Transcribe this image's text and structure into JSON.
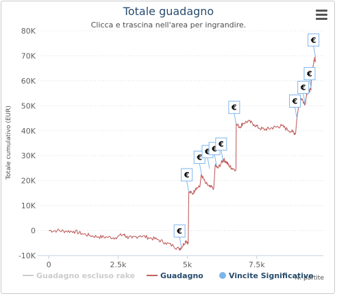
{
  "chart_data": {
    "type": "line",
    "title": "Totale guadagno",
    "subtitle": "Clicca e trascina nell'area per ingrandire.",
    "xlabel": "N. partite",
    "ylabel": "Totale cumulativo (EUR)",
    "xlim": [
      -400,
      9900
    ],
    "ylim": [
      -10000,
      80000
    ],
    "x_ticks": [
      0,
      2500,
      5000,
      7500
    ],
    "x_tick_labels": [
      "0",
      "2.5k",
      "5k",
      "7.5k"
    ],
    "y_ticks": [
      -10000,
      0,
      10000,
      20000,
      30000,
      40000,
      50000,
      60000,
      70000,
      80000
    ],
    "y_tick_labels": [
      "-10K",
      "0",
      "10K",
      "20K",
      "30K",
      "40K",
      "50K",
      "60K",
      "70K",
      "80K"
    ],
    "grid": "horizontal dotted",
    "legend_position": "bottom",
    "series": [
      {
        "name": "Guadagno escluso rake",
        "color": "#cccccc",
        "visible": false,
        "points": []
      },
      {
        "name": "Guadagno",
        "color": "#c0605f",
        "visible": true,
        "points": [
          [
            0,
            0
          ],
          [
            300,
            0
          ],
          [
            600,
            -200
          ],
          [
            900,
            -300
          ],
          [
            1200,
            -1200
          ],
          [
            1500,
            -2000
          ],
          [
            1800,
            -2500
          ],
          [
            2100,
            -2600
          ],
          [
            2400,
            -2800
          ],
          [
            2700,
            -1500
          ],
          [
            2800,
            -2500
          ],
          [
            3000,
            -3000
          ],
          [
            3300,
            -2000
          ],
          [
            3600,
            -2800
          ],
          [
            3900,
            -3500
          ],
          [
            4200,
            -4800
          ],
          [
            4500,
            -6200
          ],
          [
            4700,
            -7400
          ],
          [
            4800,
            -6500
          ],
          [
            4950,
            -4000
          ],
          [
            5030,
            -5000
          ],
          [
            5050,
            15500
          ],
          [
            5200,
            14800
          ],
          [
            5300,
            17000
          ],
          [
            5450,
            17500
          ],
          [
            5500,
            22500
          ],
          [
            5650,
            19000
          ],
          [
            5800,
            17500
          ],
          [
            5950,
            17000
          ],
          [
            6000,
            26000
          ],
          [
            6100,
            25000
          ],
          [
            6250,
            27500
          ],
          [
            6300,
            28500
          ],
          [
            6400,
            27500
          ],
          [
            6500,
            26000
          ],
          [
            6600,
            25000
          ],
          [
            6750,
            24500
          ],
          [
            6760,
            42500
          ],
          [
            6900,
            41500
          ],
          [
            7000,
            43000
          ],
          [
            7200,
            43800
          ],
          [
            7400,
            42500
          ],
          [
            7600,
            41000
          ],
          [
            7800,
            40500
          ],
          [
            8000,
            41000
          ],
          [
            8200,
            41500
          ],
          [
            8400,
            42000
          ],
          [
            8600,
            40500
          ],
          [
            8800,
            39500
          ],
          [
            8900,
            38800
          ],
          [
            8950,
            45000
          ],
          [
            9050,
            53000
          ],
          [
            9150,
            52500
          ],
          [
            9250,
            50500
          ],
          [
            9300,
            55000
          ],
          [
            9400,
            56000
          ],
          [
            9450,
            56500
          ],
          [
            9480,
            63000
          ],
          [
            9550,
            67000
          ],
          [
            9600,
            69500
          ],
          [
            9620,
            67500
          ]
        ]
      },
      {
        "name": "Vincite Significative",
        "color": "#7cb5ec",
        "visible": true,
        "marker_symbol": "€",
        "points": [
          [
            4790,
            -7000
          ],
          [
            5050,
            15500
          ],
          [
            5510,
            22500
          ],
          [
            5800,
            24800
          ],
          [
            6050,
            26000
          ],
          [
            6290,
            27800
          ],
          [
            6760,
            42500
          ],
          [
            8950,
            45000
          ],
          [
            9250,
            50500
          ],
          [
            9480,
            56000
          ],
          [
            9620,
            69500
          ]
        ]
      }
    ]
  }
}
